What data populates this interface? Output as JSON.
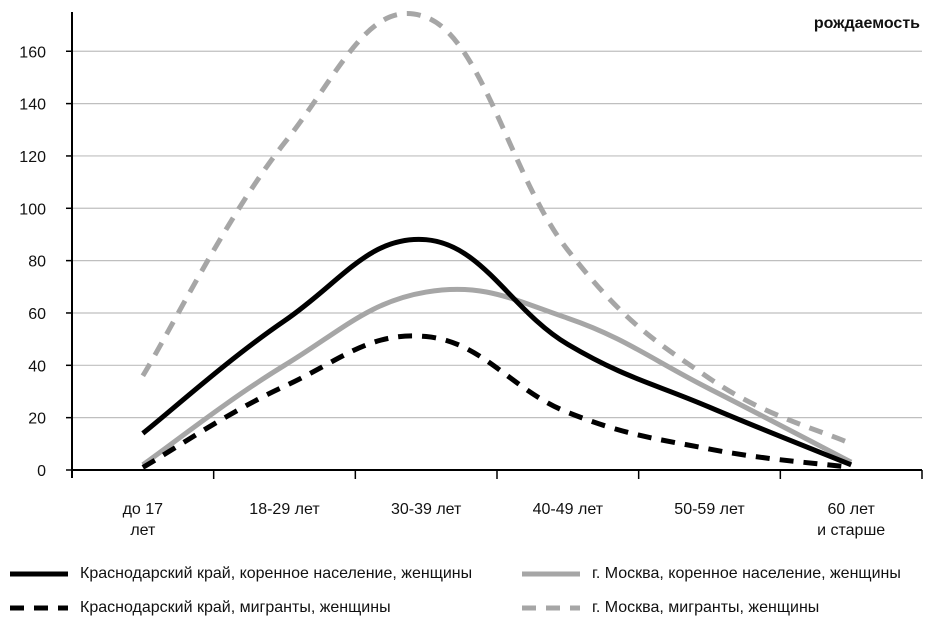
{
  "chart_data": {
    "type": "line",
    "ylabel": "рождаемость",
    "categories": [
      "до 17 лет",
      "18-29 лет",
      "30-39 лет",
      "40-49 лет",
      "50-59 лет",
      "60 лет и старше"
    ],
    "ylim": [
      0,
      175
    ],
    "yticks": [
      0,
      20,
      40,
      60,
      80,
      100,
      120,
      140,
      160
    ],
    "grid": true,
    "legend_position": "bottom",
    "series": [
      {
        "name": "Краснодарский край, коренное население, женщины",
        "values": [
          14,
          57,
          88,
          48,
          24,
          2
        ],
        "color": "#000000",
        "dashed": false
      },
      {
        "name": "г. Москва, коренное население, женщины",
        "values": [
          2,
          40,
          68,
          58,
          31,
          3
        ],
        "color": "#a6a6a6",
        "dashed": false
      },
      {
        "name": "Краснодарский край, мигранты, женщины",
        "values": [
          1,
          32,
          51,
          22,
          8,
          1
        ],
        "color": "#000000",
        "dashed": true
      },
      {
        "name": "г. Москва, мигранты, женщины",
        "values": [
          36,
          125,
          173,
          84,
          35,
          10
        ],
        "color": "#a6a6a6",
        "dashed": true
      }
    ]
  }
}
